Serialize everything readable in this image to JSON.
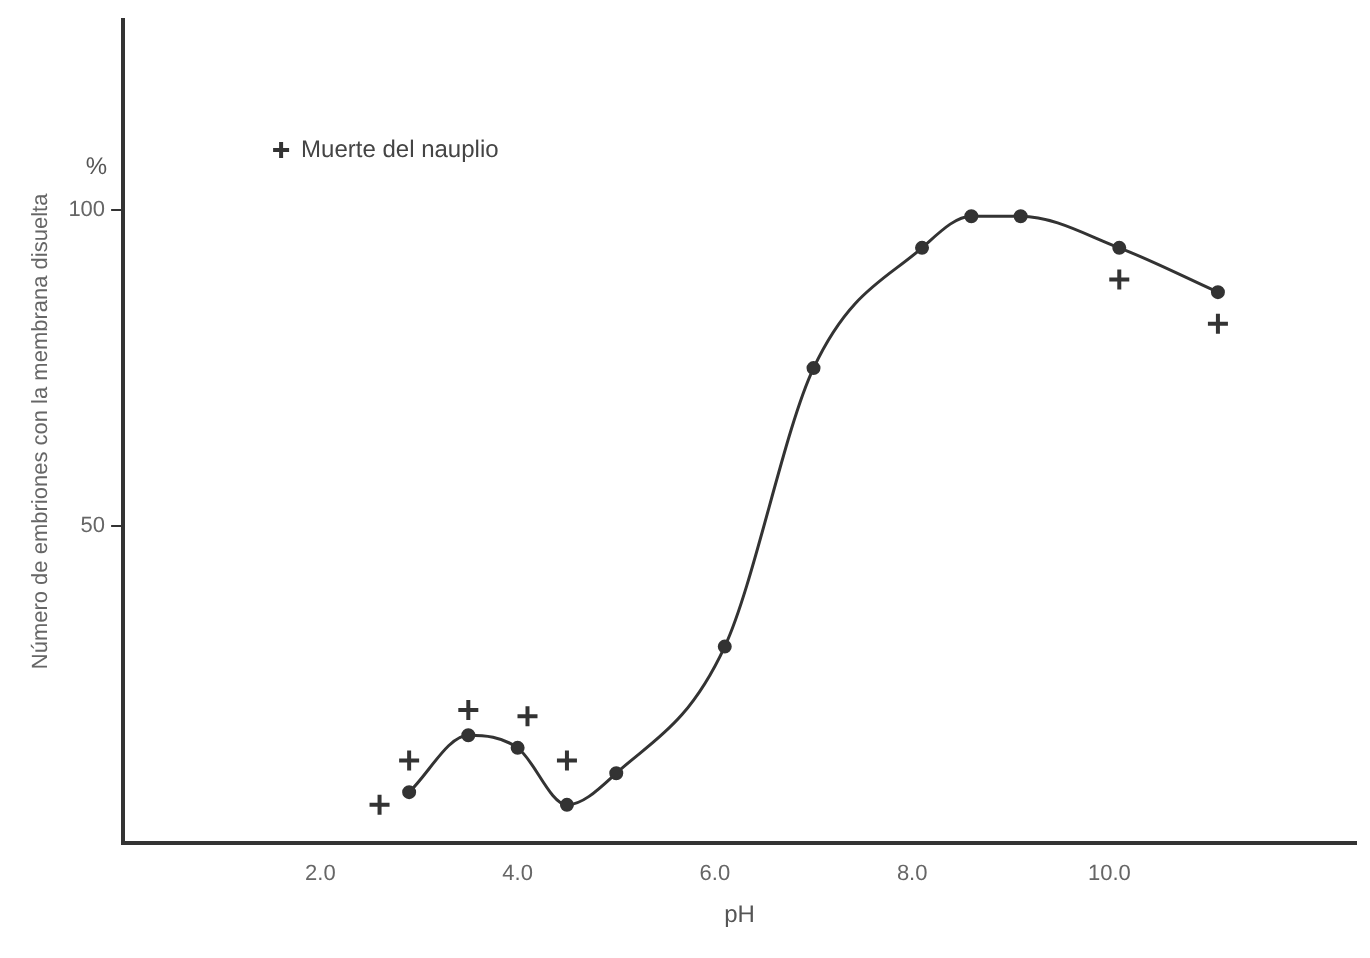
{
  "chart_data": {
    "type": "line",
    "xlabel": "pH",
    "ylabel": "Número de embriones con la membrana disuelta",
    "annotations": [
      "%"
    ],
    "xlim": [
      0,
      12.5
    ],
    "ylim": [
      0,
      130
    ],
    "xticks": [
      {
        "value": 2,
        "label": "2.0"
      },
      {
        "value": 4,
        "label": "4.0"
      },
      {
        "value": 6,
        "label": "6.0"
      },
      {
        "value": 8,
        "label": "8.0"
      },
      {
        "value": 10,
        "label": "10.0"
      }
    ],
    "yticks": [
      50,
      100
    ],
    "grid": false,
    "legend": "top left",
    "series": [
      {
        "color": "#333333",
        "marker": "circle",
        "line_style": "solid",
        "x": [
          2.9,
          3.5,
          4.0,
          4.5,
          5.0,
          6.1,
          7.0,
          8.1,
          8.6,
          9.1,
          10.1,
          11.1
        ],
        "values": [
          8,
          17,
          15,
          6,
          11,
          31,
          75,
          94,
          99,
          99,
          94,
          87
        ]
      },
      {
        "type": "scatter",
        "name": "Muerte del nauplio",
        "color": "#333333",
        "marker": "cross",
        "x": [
          2.6,
          2.9,
          3.5,
          4.1,
          4.5,
          10.1,
          11.1
        ],
        "values": [
          6,
          13,
          21,
          20,
          13,
          89,
          82
        ]
      }
    ]
  }
}
